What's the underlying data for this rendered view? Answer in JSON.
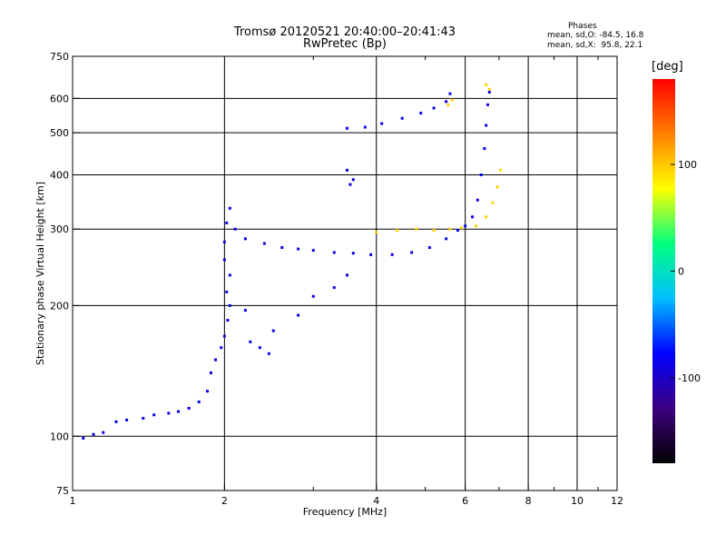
{
  "header": {
    "title_line1": "Tromsø 20120521 20:40:00–20:41:43",
    "title_line2": "RwPretec (Bp)",
    "phases_heading": "Phases",
    "phases_line1": "mean, sd,O: -84.5, 16.8",
    "phases_line2": "mean, sd,X:  95.8, 22.1"
  },
  "chart_data": {
    "type": "scatter",
    "title": "Tromsø 20120521 20:40:00–20:41:43",
    "subtitle": "RwPretec (Bp)",
    "xlabel": "Frequency [MHz]",
    "ylabel": "Stationary phase Virtual Height [km]",
    "xscale": "log",
    "yscale": "log",
    "xlim": [
      1,
      12
    ],
    "ylim": [
      75,
      750
    ],
    "xticks": [
      1,
      2,
      4,
      6,
      8,
      10,
      12
    ],
    "yticks": [
      75,
      100,
      200,
      300,
      400,
      500,
      600,
      750
    ],
    "grid": true,
    "colorbar": {
      "label": "[deg]",
      "range": [
        -180,
        180
      ],
      "ticks": [
        100,
        0,
        -100
      ],
      "colormap": [
        "#000000",
        "#3d0080",
        "#0000ff",
        "#00bfff",
        "#00ff80",
        "#ffff00",
        "#ff8000",
        "#ff0000"
      ]
    },
    "series": [
      {
        "mode": "O",
        "phase": -84.5,
        "points": [
          [
            1.05,
            99
          ],
          [
            1.1,
            101
          ],
          [
            1.15,
            102
          ],
          [
            1.22,
            108
          ],
          [
            1.28,
            109
          ],
          [
            1.38,
            110
          ],
          [
            1.45,
            112
          ],
          [
            1.55,
            113
          ],
          [
            1.62,
            114
          ],
          [
            1.7,
            116
          ],
          [
            1.78,
            120
          ],
          [
            1.85,
            127
          ],
          [
            1.88,
            140
          ],
          [
            1.92,
            150
          ],
          [
            1.97,
            160
          ],
          [
            2.0,
            170
          ],
          [
            2.03,
            185
          ],
          [
            2.05,
            200
          ],
          [
            2.02,
            215
          ],
          [
            2.05,
            235
          ],
          [
            2.0,
            255
          ],
          [
            2.0,
            280
          ],
          [
            2.02,
            310
          ],
          [
            2.05,
            335
          ],
          [
            2.1,
            300
          ],
          [
            2.2,
            285
          ],
          [
            2.4,
            278
          ],
          [
            2.6,
            272
          ],
          [
            2.8,
            270
          ],
          [
            3.0,
            268
          ],
          [
            3.3,
            265
          ],
          [
            3.6,
            264
          ],
          [
            3.9,
            262
          ],
          [
            4.3,
            262
          ],
          [
            4.7,
            265
          ],
          [
            5.1,
            272
          ],
          [
            5.5,
            285
          ],
          [
            5.8,
            298
          ],
          [
            6.0,
            305
          ],
          [
            6.2,
            320
          ],
          [
            6.35,
            350
          ],
          [
            6.45,
            400
          ],
          [
            6.55,
            460
          ],
          [
            6.6,
            520
          ],
          [
            6.65,
            580
          ],
          [
            6.7,
            620
          ],
          [
            3.5,
            512
          ],
          [
            3.8,
            515
          ],
          [
            4.1,
            525
          ],
          [
            4.5,
            540
          ],
          [
            4.9,
            555
          ],
          [
            5.2,
            570
          ],
          [
            5.5,
            590
          ],
          [
            5.6,
            615
          ],
          [
            2.25,
            165
          ],
          [
            2.35,
            160
          ],
          [
            2.45,
            155
          ],
          [
            2.2,
            195
          ],
          [
            2.5,
            175
          ],
          [
            2.8,
            190
          ],
          [
            3.0,
            210
          ],
          [
            3.3,
            220
          ],
          [
            3.5,
            235
          ],
          [
            3.55,
            380
          ],
          [
            3.6,
            390
          ],
          [
            3.5,
            410
          ]
        ]
      },
      {
        "mode": "X",
        "phase": 95.8,
        "points": [
          [
            4.0,
            295
          ],
          [
            4.4,
            298
          ],
          [
            4.8,
            300
          ],
          [
            5.2,
            298
          ],
          [
            5.6,
            300
          ],
          [
            5.9,
            302
          ],
          [
            6.3,
            305
          ],
          [
            6.6,
            320
          ],
          [
            6.8,
            345
          ],
          [
            6.95,
            375
          ],
          [
            7.05,
            410
          ],
          [
            5.55,
            580
          ],
          [
            5.65,
            595
          ],
          [
            6.7,
            630
          ],
          [
            6.6,
            645
          ]
        ]
      }
    ]
  }
}
